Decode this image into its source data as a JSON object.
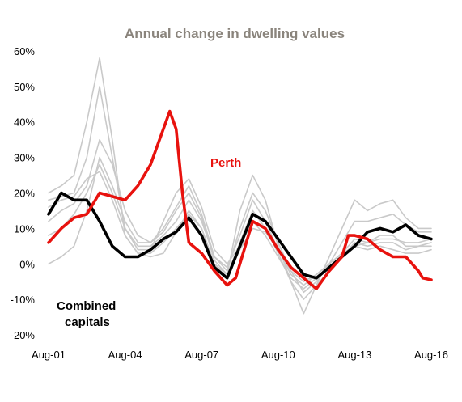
{
  "chart_data": {
    "type": "line",
    "title": "Annual change in dwelling values",
    "xlabel": "",
    "ylabel": "",
    "ylim": [
      -0.2,
      0.6
    ],
    "xlim": [
      "Aug-01",
      "Aug-16"
    ],
    "x_tick_labels": [
      "Aug-01",
      "Aug-04",
      "Aug-07",
      "Aug-10",
      "Aug-13",
      "Aug-16"
    ],
    "y_tick_labels": [
      "-20%",
      "-10%",
      "0%",
      "10%",
      "20%",
      "30%",
      "40%",
      "50%",
      "60%"
    ],
    "grid": false,
    "legend": "none",
    "annotations": {
      "perth": "Perth",
      "combined_line1": "Combined",
      "combined_line2": "capitals"
    },
    "colors": {
      "perth": "#e8120e",
      "combined": "#000000",
      "other_capitals": "#c9c9c9",
      "title": "#8a847c"
    },
    "series": [
      {
        "name": "Perth",
        "color": "#e8120e",
        "x": [
          "2001-08",
          "2002-02",
          "2002-08",
          "2003-02",
          "2003-08",
          "2004-02",
          "2004-08",
          "2005-02",
          "2005-08",
          "2006-02",
          "2006-05",
          "2006-08",
          "2006-11",
          "2007-02",
          "2007-08",
          "2008-02",
          "2008-08",
          "2008-12",
          "2009-04",
          "2009-08",
          "2010-02",
          "2010-08",
          "2011-02",
          "2011-08",
          "2012-02",
          "2012-08",
          "2013-02",
          "2013-05",
          "2013-08",
          "2014-02",
          "2014-08",
          "2015-02",
          "2015-08",
          "2016-02",
          "2016-04",
          "2016-08"
        ],
        "values": [
          0.06,
          0.1,
          0.13,
          0.14,
          0.2,
          0.19,
          0.18,
          0.22,
          0.28,
          0.38,
          0.43,
          0.38,
          0.2,
          0.06,
          0.03,
          -0.02,
          -0.06,
          -0.04,
          0.04,
          0.12,
          0.1,
          0.04,
          -0.01,
          -0.04,
          -0.07,
          -0.02,
          0.02,
          0.08,
          0.08,
          0.07,
          0.04,
          0.02,
          0.02,
          -0.02,
          -0.04,
          -0.045
        ]
      },
      {
        "name": "Combined capitals",
        "color": "#000000",
        "x": [
          "2001-08",
          "2002-02",
          "2002-08",
          "2003-02",
          "2003-08",
          "2004-02",
          "2004-08",
          "2005-02",
          "2005-08",
          "2006-02",
          "2006-08",
          "2007-02",
          "2007-08",
          "2008-02",
          "2008-08",
          "2008-12",
          "2009-04",
          "2009-08",
          "2010-02",
          "2010-08",
          "2011-02",
          "2011-08",
          "2012-02",
          "2012-08",
          "2013-02",
          "2013-08",
          "2014-02",
          "2014-08",
          "2015-02",
          "2015-08",
          "2016-02",
          "2016-08"
        ],
        "values": [
          0.14,
          0.2,
          0.18,
          0.18,
          0.12,
          0.05,
          0.02,
          0.02,
          0.04,
          0.07,
          0.09,
          0.13,
          0.08,
          -0.01,
          -0.04,
          0.02,
          0.08,
          0.14,
          0.12,
          0.07,
          0.02,
          -0.03,
          -0.04,
          -0.01,
          0.02,
          0.05,
          0.09,
          0.1,
          0.09,
          0.11,
          0.08,
          0.07
        ]
      },
      {
        "name": "",
        "color": "#c9c9c9",
        "x": [
          "2001-08",
          "2002-02",
          "2002-08",
          "2003-02",
          "2003-08",
          "2004-02",
          "2004-08",
          "2005-02",
          "2005-08",
          "2006-02",
          "2006-08",
          "2007-02",
          "2007-08",
          "2008-02",
          "2008-08",
          "2009-02",
          "2009-08",
          "2010-02",
          "2010-08",
          "2011-02",
          "2011-08",
          "2012-02",
          "2012-08",
          "2013-02",
          "2013-08",
          "2014-02",
          "2014-08",
          "2015-02",
          "2015-08",
          "2016-02",
          "2016-08"
        ],
        "values": [
          0.2,
          0.22,
          0.25,
          0.4,
          0.58,
          0.35,
          0.08,
          0.03,
          0.02,
          0.03,
          0.09,
          0.15,
          0.1,
          0.0,
          -0.03,
          0.15,
          0.25,
          0.18,
          0.05,
          -0.05,
          -0.14,
          -0.06,
          0.02,
          0.1,
          0.18,
          0.15,
          0.17,
          0.18,
          0.13,
          0.1,
          0.1
        ]
      },
      {
        "name": "",
        "color": "#c9c9c9",
        "x": [
          "2001-08",
          "2002-02",
          "2002-08",
          "2003-02",
          "2003-08",
          "2004-02",
          "2004-08",
          "2005-02",
          "2005-08",
          "2006-02",
          "2006-08",
          "2007-02",
          "2007-08",
          "2008-02",
          "2008-08",
          "2009-02",
          "2009-08",
          "2010-02",
          "2010-08",
          "2011-02",
          "2011-08",
          "2012-02",
          "2012-08",
          "2013-02",
          "2013-08",
          "2014-02",
          "2014-08",
          "2015-02",
          "2015-08",
          "2016-02",
          "2016-08"
        ],
        "values": [
          0.18,
          0.19,
          0.2,
          0.3,
          0.5,
          0.3,
          0.1,
          0.05,
          0.05,
          0.08,
          0.12,
          0.18,
          0.12,
          0.02,
          -0.02,
          0.1,
          0.2,
          0.15,
          0.06,
          -0.02,
          -0.08,
          -0.05,
          0.0,
          0.06,
          0.12,
          0.12,
          0.13,
          0.14,
          0.11,
          0.09,
          0.09
        ]
      },
      {
        "name": "",
        "color": "#c9c9c9",
        "x": [
          "2001-08",
          "2002-02",
          "2002-08",
          "2003-02",
          "2003-08",
          "2004-02",
          "2004-08",
          "2005-02",
          "2005-08",
          "2006-02",
          "2006-08",
          "2007-02",
          "2007-08",
          "2008-02",
          "2008-08",
          "2009-02",
          "2009-08",
          "2010-02",
          "2010-08",
          "2011-02",
          "2011-08",
          "2012-02",
          "2012-08",
          "2013-02",
          "2013-08",
          "2014-02",
          "2014-08",
          "2015-02",
          "2015-08",
          "2016-02",
          "2016-08"
        ],
        "values": [
          0.0,
          0.02,
          0.05,
          0.15,
          0.3,
          0.22,
          0.12,
          0.06,
          0.06,
          0.1,
          0.16,
          0.22,
          0.14,
          0.02,
          -0.01,
          0.08,
          0.18,
          0.12,
          0.04,
          -0.03,
          -0.06,
          -0.03,
          0.0,
          0.03,
          0.07,
          0.06,
          0.08,
          0.08,
          0.05,
          0.05,
          0.05
        ]
      },
      {
        "name": "",
        "color": "#c9c9c9",
        "x": [
          "2001-08",
          "2002-02",
          "2002-08",
          "2003-02",
          "2003-08",
          "2004-02",
          "2004-08",
          "2005-02",
          "2005-08",
          "2006-02",
          "2006-08",
          "2007-02",
          "2007-08",
          "2008-02",
          "2008-08",
          "2009-02",
          "2009-08",
          "2010-02",
          "2010-08",
          "2011-02",
          "2011-08",
          "2012-02",
          "2012-08",
          "2013-02",
          "2013-08",
          "2014-02",
          "2014-08",
          "2015-02",
          "2015-08",
          "2016-02",
          "2016-08"
        ],
        "values": [
          0.12,
          0.15,
          0.17,
          0.22,
          0.35,
          0.28,
          0.15,
          0.08,
          0.06,
          0.09,
          0.15,
          0.2,
          0.13,
          0.01,
          -0.03,
          0.06,
          0.15,
          0.1,
          0.03,
          -0.05,
          -0.1,
          -0.06,
          -0.02,
          0.02,
          0.05,
          0.04,
          0.05,
          0.04,
          0.03,
          0.03,
          0.04
        ]
      },
      {
        "name": "",
        "color": "#c9c9c9",
        "x": [
          "2001-08",
          "2002-02",
          "2002-08",
          "2003-02",
          "2003-08",
          "2004-02",
          "2004-08",
          "2005-02",
          "2005-08",
          "2006-02",
          "2006-08",
          "2007-02",
          "2007-08",
          "2008-02",
          "2008-08",
          "2009-02",
          "2009-08",
          "2010-02",
          "2010-08",
          "2011-02",
          "2011-08",
          "2012-02",
          "2012-08",
          "2013-02",
          "2013-08",
          "2014-02",
          "2014-08",
          "2015-02",
          "2015-08",
          "2016-02",
          "2016-08"
        ],
        "values": [
          0.08,
          0.1,
          0.14,
          0.2,
          0.28,
          0.2,
          0.1,
          0.04,
          0.04,
          0.12,
          0.2,
          0.24,
          0.16,
          0.04,
          0.0,
          0.05,
          0.12,
          0.08,
          0.02,
          -0.04,
          -0.07,
          -0.04,
          -0.01,
          0.02,
          0.06,
          0.05,
          0.06,
          0.06,
          0.04,
          0.05,
          0.06
        ]
      },
      {
        "name": "",
        "color": "#c9c9c9",
        "x": [
          "2001-08",
          "2002-02",
          "2002-08",
          "2003-02",
          "2003-08",
          "2004-02",
          "2004-08",
          "2005-02",
          "2005-08",
          "2006-02",
          "2006-08",
          "2007-02",
          "2007-08",
          "2008-02",
          "2008-08",
          "2009-02",
          "2009-08",
          "2010-02",
          "2010-08",
          "2011-02",
          "2011-08",
          "2012-02",
          "2012-08",
          "2013-02",
          "2013-08",
          "2014-02",
          "2014-08",
          "2015-02",
          "2015-08",
          "2016-02",
          "2016-08"
        ],
        "values": [
          0.16,
          0.18,
          0.19,
          0.24,
          0.26,
          0.18,
          0.08,
          0.03,
          0.03,
          0.06,
          0.1,
          0.14,
          0.1,
          0.0,
          -0.04,
          0.04,
          0.1,
          0.09,
          0.04,
          -0.02,
          -0.05,
          -0.03,
          0.0,
          0.03,
          0.05,
          0.06,
          0.07,
          0.07,
          0.06,
          0.06,
          0.07
        ]
      }
    ]
  }
}
